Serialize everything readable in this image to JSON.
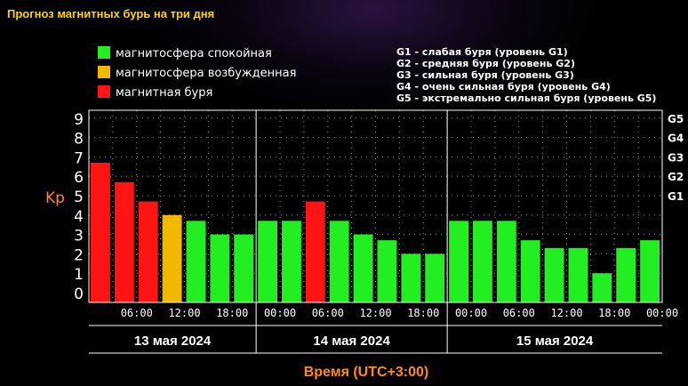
{
  "chart_data": {
    "type": "bar",
    "title": "Прогноз магнитных бурь на три дня",
    "ylabel": "Kp",
    "xlabel": "Время (UTC+3:00)",
    "ylim": [
      0,
      9
    ],
    "yticks": [
      "0",
      "1",
      "2",
      "3",
      "4",
      "5",
      "6",
      "7",
      "8",
      "9"
    ],
    "g_levels": [
      {
        "label": "G1",
        "kp": 5
      },
      {
        "label": "G2",
        "kp": 6
      },
      {
        "label": "G3",
        "kp": 7
      },
      {
        "label": "G4",
        "kp": 8
      },
      {
        "label": "G5",
        "kp": 9
      }
    ],
    "xticks": [
      "06:00",
      "12:00",
      "18:00",
      "00:00",
      "06:00",
      "12:00",
      "18:00",
      "00:00",
      "06:00",
      "12:00",
      "18:00",
      "00:00"
    ],
    "days": [
      "13 мая 2024",
      "14 мая 2024",
      "15 мая 2024"
    ],
    "values": [
      6.7,
      5.7,
      4.7,
      4.0,
      3.7,
      3.0,
      3.0,
      3.7,
      3.7,
      4.7,
      3.7,
      3.0,
      2.7,
      2.0,
      2.0,
      3.7,
      3.7,
      3.7,
      2.7,
      2.3,
      2.3,
      1.0,
      2.3,
      2.7
    ],
    "status": [
      "storm",
      "storm",
      "storm",
      "excited",
      "quiet",
      "quiet",
      "quiet",
      "quiet",
      "quiet",
      "storm",
      "quiet",
      "quiet",
      "quiet",
      "quiet",
      "quiet",
      "quiet",
      "quiet",
      "quiet",
      "quiet",
      "quiet",
      "quiet",
      "quiet",
      "quiet",
      "quiet"
    ],
    "grid": true,
    "legend_placement": "top-left",
    "legend": [
      {
        "key": "quiet",
        "label": "магнитосфера спокойная",
        "color": "#22ee22"
      },
      {
        "key": "excited",
        "label": "магнитосфера возбужденная",
        "color": "#f0b800"
      },
      {
        "key": "storm",
        "label": "магнитная буря",
        "color": "#ff1414"
      }
    ],
    "g_legend": [
      "G1 - слабая буря (уровень G1)",
      "G2 - средняя буря (уровень G2)",
      "G3 - сильная буря (уровень G3)",
      "G4 - очень сильная буря (уровень G4)",
      "G5 - экстремально сильная буря (уровень G5)"
    ]
  },
  "colors": {
    "title": "#ffd400",
    "accent": "#ff8c1a",
    "axis": "#ffffff"
  }
}
